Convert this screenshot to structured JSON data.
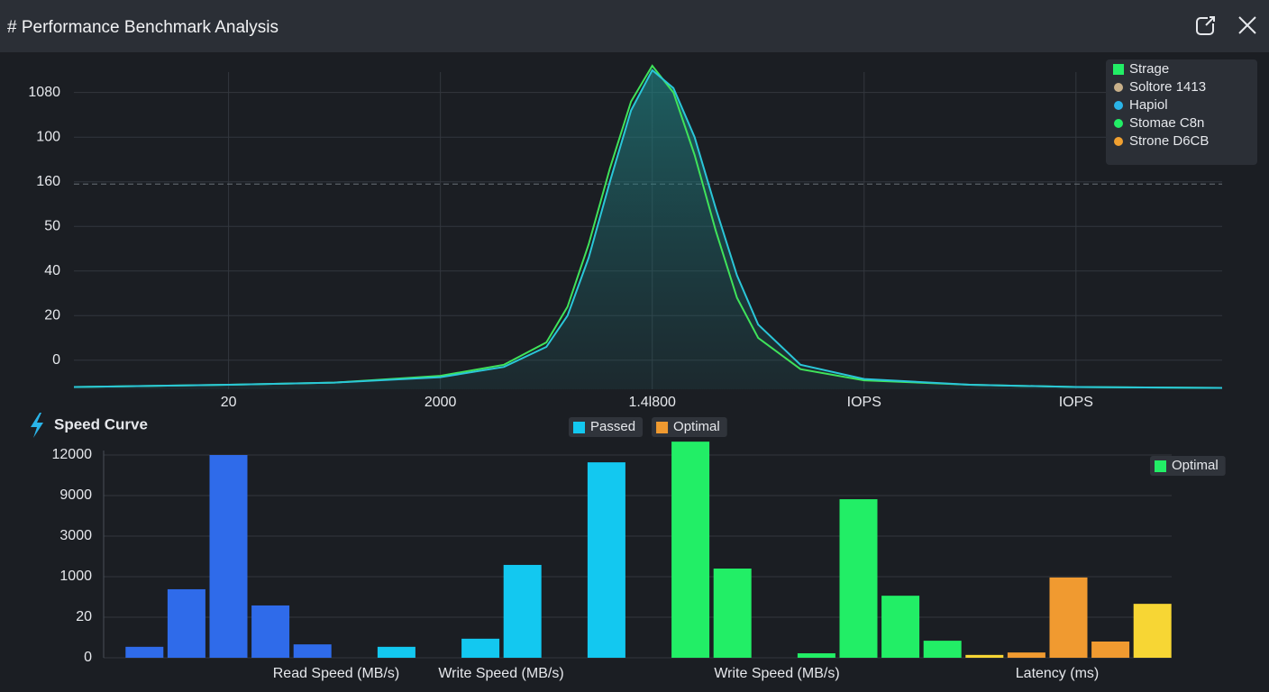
{
  "header": {
    "title": "# Performance Benchmark Analysis"
  },
  "chart_data": [
    {
      "type": "line",
      "x": [
        0.27,
        1,
        1.5,
        2,
        2.3,
        2.5,
        2.6,
        2.7,
        2.8,
        2.9,
        3,
        3.1,
        3.2,
        3.3,
        3.4,
        3.5,
        3.7,
        4,
        4.5,
        5,
        5.69
      ],
      "series": [
        {
          "color": "#3fe35a",
          "values": [
            -0.6,
            -0.55,
            -0.5,
            -0.35,
            -0.1,
            0.4,
            1.2,
            2.6,
            4.3,
            5.8,
            6.6,
            6.0,
            4.6,
            2.9,
            1.4,
            0.5,
            -0.2,
            -0.45,
            -0.55,
            -0.6,
            -0.62
          ]
        },
        {
          "color": "#2ac6d8",
          "values": [
            -0.6,
            -0.55,
            -0.5,
            -0.38,
            -0.15,
            0.3,
            1.0,
            2.3,
            4.0,
            5.6,
            6.5,
            6.1,
            5.0,
            3.4,
            1.9,
            0.8,
            -0.1,
            -0.42,
            -0.55,
            -0.6,
            -0.62
          ]
        }
      ],
      "reference_line": 3.95,
      "xlim": [
        0.27,
        5.69
      ],
      "xticks": [
        {
          "value": 1,
          "label": "20"
        },
        {
          "value": 2,
          "label": "2000"
        },
        {
          "value": 3,
          "label": "1.4l800"
        },
        {
          "value": 4,
          "label": "IOPS"
        },
        {
          "value": 5,
          "label": "IOPS"
        }
      ],
      "ylim": [
        -0.65,
        6.7
      ],
      "yticks": [
        0,
        {
          "value": 1,
          "label": "20"
        },
        {
          "value": 2,
          "label": "40"
        },
        {
          "value": 3,
          "label": "50"
        },
        {
          "value": 4,
          "label": "160"
        },
        {
          "value": 5,
          "label": "100"
        },
        {
          "value": 6,
          "label": "1080"
        }
      ],
      "grid": true,
      "legend": [
        {
          "label": "Strage",
          "color": "#22ee66",
          "marker": "square"
        },
        {
          "label": "Soltore 1413",
          "color": "#c8b08a",
          "marker": "circle"
        },
        {
          "label": "Hapiol",
          "color": "#2ab4e8",
          "marker": "circle"
        },
        {
          "label": "Stomae C8n",
          "color": "#22ee66",
          "marker": "circle"
        },
        {
          "label": "Strone D6CB",
          "color": "#f0a030",
          "marker": "circle"
        }
      ]
    },
    {
      "type": "bar",
      "title": "Speed Curve",
      "categories": [
        null,
        null,
        null,
        null,
        null,
        null,
        null,
        null,
        null,
        null,
        null,
        null,
        null,
        null,
        null,
        null,
        null,
        null,
        null,
        null,
        null,
        null,
        null,
        null,
        null
      ],
      "group_labels": [
        "Read Speed (MB/s)",
        "Write Speed (MB/s)",
        "Write Speed (MB/s)",
        "Latency (ms)"
      ],
      "series": [
        {
          "color": "#2f6bea",
          "values": [
            0.27,
            1.69,
            5.0,
            1.29,
            0.33,
            null,
            null,
            null,
            null,
            null,
            null,
            null,
            null,
            null,
            null,
            null,
            null,
            null,
            null,
            null,
            null,
            null,
            null,
            null,
            null
          ]
        },
        {
          "name": "Passed",
          "color": "#13c8f0",
          "legend": "top",
          "values": [
            null,
            null,
            null,
            null,
            null,
            null,
            0.27,
            null,
            0.47,
            2.29,
            null,
            4.82,
            null,
            null,
            null,
            null,
            null,
            null,
            null,
            null,
            null,
            null,
            null,
            null,
            null
          ]
        },
        {
          "name": "Optimal",
          "color": "#f09a30",
          "legend": "top",
          "values": [
            null,
            null,
            null,
            null,
            null,
            null,
            null,
            null,
            null,
            null,
            null,
            null,
            null,
            null,
            null,
            null,
            null,
            null,
            null,
            null,
            null,
            0.13,
            1.98,
            0.4,
            null
          ]
        },
        {
          "name": "Optimal",
          "color": "#22ee66",
          "legend": "right",
          "values": [
            null,
            null,
            null,
            null,
            null,
            null,
            null,
            null,
            null,
            null,
            null,
            null,
            null,
            5.33,
            2.2,
            null,
            0.11,
            3.91,
            1.53,
            0.42,
            null,
            null,
            null,
            null,
            null
          ]
        },
        {
          "color": "#f7d634",
          "values": [
            null,
            null,
            null,
            null,
            null,
            null,
            null,
            null,
            null,
            null,
            null,
            null,
            null,
            null,
            null,
            null,
            null,
            null,
            null,
            null,
            0.07,
            null,
            null,
            null,
            1.33
          ]
        }
      ],
      "ylim": [
        0,
        5.4
      ],
      "yticks": [
        0,
        {
          "value": 1,
          "label": "20"
        },
        {
          "value": 2,
          "label": "1000"
        },
        {
          "value": 3,
          "label": "3000"
        },
        {
          "value": 4,
          "label": "9000"
        },
        {
          "value": 5,
          "label": "12000"
        }
      ],
      "grid": true
    }
  ]
}
